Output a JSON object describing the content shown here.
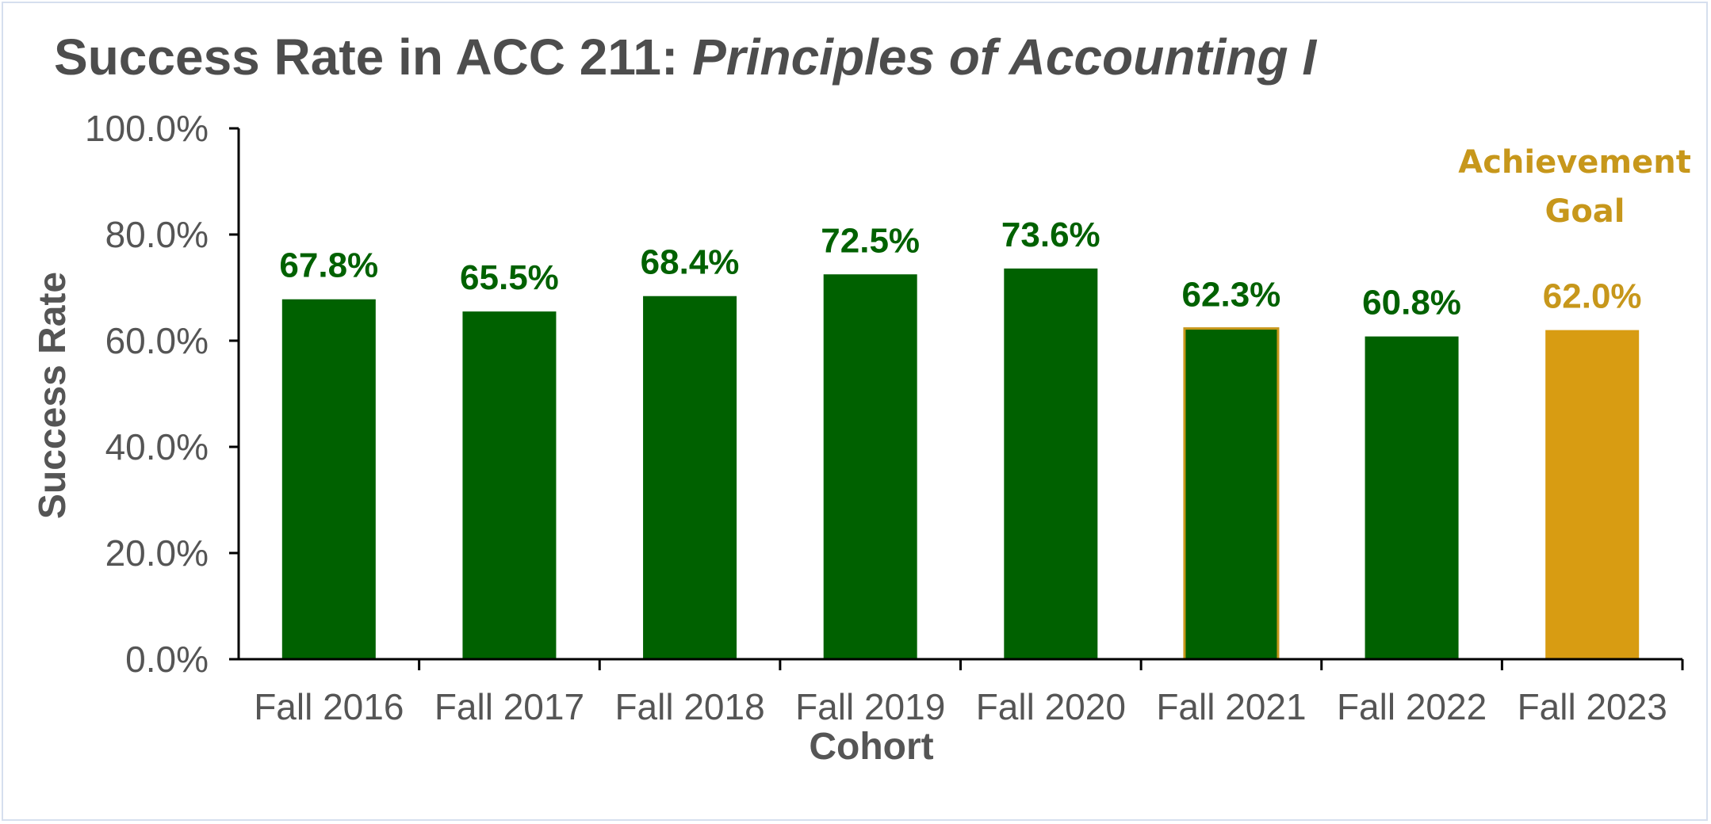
{
  "chart_data": {
    "type": "bar",
    "title": "Success Rate in ACC 211: ",
    "title_italic": "Principles of Accounting I",
    "xlabel": "Cohort",
    "ylabel": "Success Rate",
    "ylim": [
      0,
      100
    ],
    "yticks": [
      0,
      20,
      40,
      60,
      80,
      100
    ],
    "ytick_labels": [
      "0.0%",
      "20.0%",
      "40.0%",
      "60.0%",
      "80.0%",
      "100.0%"
    ],
    "categories": [
      "Fall 2016",
      "Fall 2017",
      "Fall 2018",
      "Fall 2019",
      "Fall 2020",
      "Fall 2021",
      "Fall 2022",
      "Fall 2023"
    ],
    "values": [
      67.8,
      65.5,
      68.4,
      72.5,
      73.6,
      62.3,
      60.8,
      62.0
    ],
    "value_labels": [
      "67.8%",
      "65.5%",
      "68.4%",
      "72.5%",
      "73.6%",
      "62.3%",
      "60.8%",
      "62.0%"
    ],
    "bar_colors": [
      "#006100",
      "#006100",
      "#006100",
      "#006100",
      "#006100",
      "#006100",
      "#006100",
      "#d89c12"
    ],
    "label_colors": [
      "#006100",
      "#006100",
      "#006100",
      "#006100",
      "#006100",
      "#006100",
      "#006100",
      "#c7971b"
    ],
    "highlight_outline_index": 5,
    "annotation": {
      "lines": [
        "Achievement",
        "Goal"
      ],
      "color": "#c7971b"
    },
    "grid": false,
    "legend": "none"
  }
}
